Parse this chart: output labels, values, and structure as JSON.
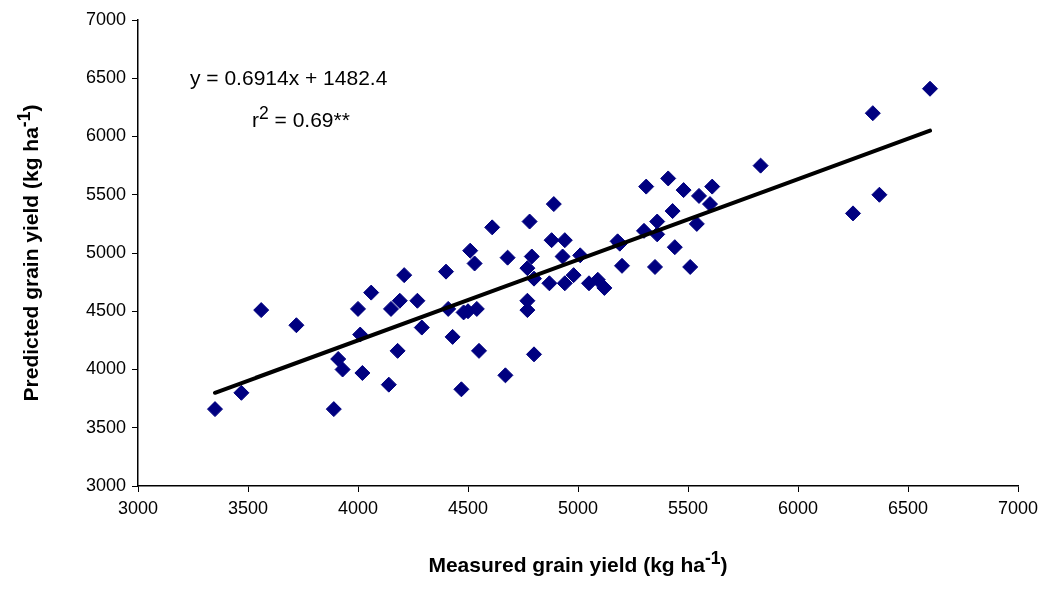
{
  "chart_data": {
    "type": "scatter",
    "xlabel": "Measured grain yield (kg ha$^{-1}$)",
    "ylabel": "Predicted grain yield (kg ha$^{-1}$)",
    "annotations": [
      "y = 0.6914x + 1482.4",
      "r$^{2}$ = 0.69**"
    ],
    "xlim": [
      3000,
      7000
    ],
    "xticks": [
      3000,
      3500,
      4000,
      4500,
      5000,
      5500,
      6000,
      6500,
      7000
    ],
    "ylim": [
      3000,
      7000
    ],
    "yticks": [
      3000,
      3500,
      4000,
      4500,
      5000,
      5500,
      6000,
      6500,
      7000
    ],
    "grid": false,
    "legend": false,
    "marker": "diamond",
    "series": [
      {
        "color": "#000080",
        "x": [
          3350,
          3470,
          3560,
          3720,
          3890,
          3910,
          3930,
          4000,
          4010,
          4020,
          4060,
          4140,
          4150,
          4180,
          4190,
          4210,
          4270,
          4290,
          4400,
          4410,
          4430,
          4470,
          4480,
          4500,
          4510,
          4530,
          4540,
          4550,
          4610,
          4670,
          4680,
          4770,
          4770,
          4770,
          4780,
          4790,
          4800,
          4800,
          4870,
          4880,
          4890,
          4930,
          4940,
          4940,
          4980,
          5010,
          5050,
          5090,
          5120,
          5180,
          5190,
          5200,
          5300,
          5310,
          5350,
          5360,
          5360,
          5410,
          5430,
          5440,
          5480,
          5510,
          5540,
          5550,
          5600,
          5610,
          5830,
          6250,
          6340,
          6370,
          6600
        ],
        "values": [
          3660,
          3800,
          4510,
          4380,
          3660,
          4090,
          4000,
          4520,
          4300,
          3970,
          4660,
          3870,
          4520,
          4160,
          4590,
          4810,
          4590,
          4360,
          4840,
          4520,
          4280,
          3830,
          4490,
          4500,
          5020,
          4910,
          4520,
          4160,
          5220,
          3950,
          4960,
          4510,
          4590,
          4870,
          5270,
          4970,
          4130,
          4780,
          4740,
          5110,
          5420,
          4970,
          4740,
          5110,
          4810,
          4980,
          4740,
          4770,
          4700,
          5100,
          5080,
          4890,
          5190,
          5570,
          4880,
          5160,
          5270,
          5640,
          5360,
          5050,
          5540,
          4880,
          5250,
          5490,
          5420,
          5570,
          5750,
          5340,
          6200,
          5500,
          6410
        ]
      },
      {
        "type": "line",
        "color": "#000000",
        "marker": "none",
        "x": [
          3350,
          6600
        ],
        "values": [
          3800,
          6050
        ]
      }
    ]
  }
}
